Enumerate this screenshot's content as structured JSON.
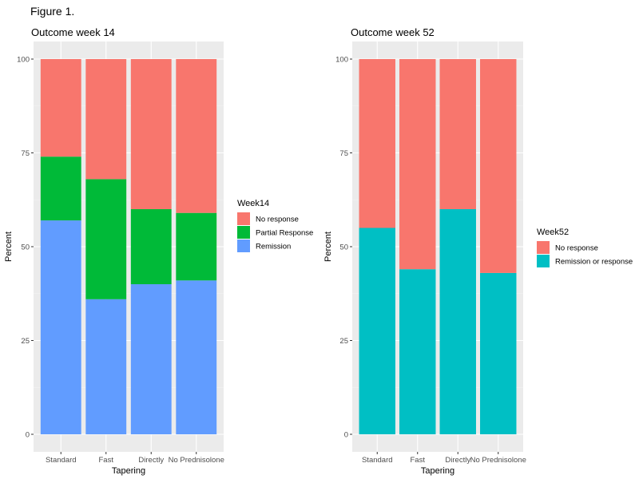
{
  "figure_title": "Figure 1.",
  "chart_data": [
    {
      "type": "bar",
      "stacked": true,
      "title": "Outcome week 14",
      "xlabel": "Tapering",
      "ylabel": "Percent",
      "ylim": [
        0,
        100
      ],
      "yticks": [
        0,
        25,
        50,
        75,
        100
      ],
      "categories": [
        "Standard",
        "Fast",
        "Directly",
        "No Prednisolone"
      ],
      "legend_title": "Week14",
      "legend_position": "right",
      "series": [
        {
          "name": "Remission",
          "color": "#619CFF",
          "values": [
            57,
            36,
            40,
            41
          ]
        },
        {
          "name": "Partial Response",
          "color": "#00BA38",
          "values": [
            17,
            32,
            20,
            18
          ]
        },
        {
          "name": "No response",
          "color": "#F8766D",
          "values": [
            26,
            32,
            40,
            41
          ]
        }
      ],
      "legend_order": [
        "No response",
        "Partial Response",
        "Remission"
      ]
    },
    {
      "type": "bar",
      "stacked": true,
      "title": "Outcome week 52",
      "xlabel": "Tapering",
      "ylabel": "Percent",
      "ylim": [
        0,
        100
      ],
      "yticks": [
        0,
        25,
        50,
        75,
        100
      ],
      "categories": [
        "Standard",
        "Fast",
        "Directly",
        "No Prednisolone"
      ],
      "legend_title": "Week52",
      "legend_position": "right",
      "series": [
        {
          "name": "Remission or response",
          "color": "#00BFC4",
          "values": [
            55,
            44,
            60,
            43
          ]
        },
        {
          "name": "No response",
          "color": "#F8766D",
          "values": [
            45,
            56,
            40,
            57
          ]
        }
      ],
      "legend_order": [
        "No response",
        "Remission or response"
      ]
    }
  ]
}
